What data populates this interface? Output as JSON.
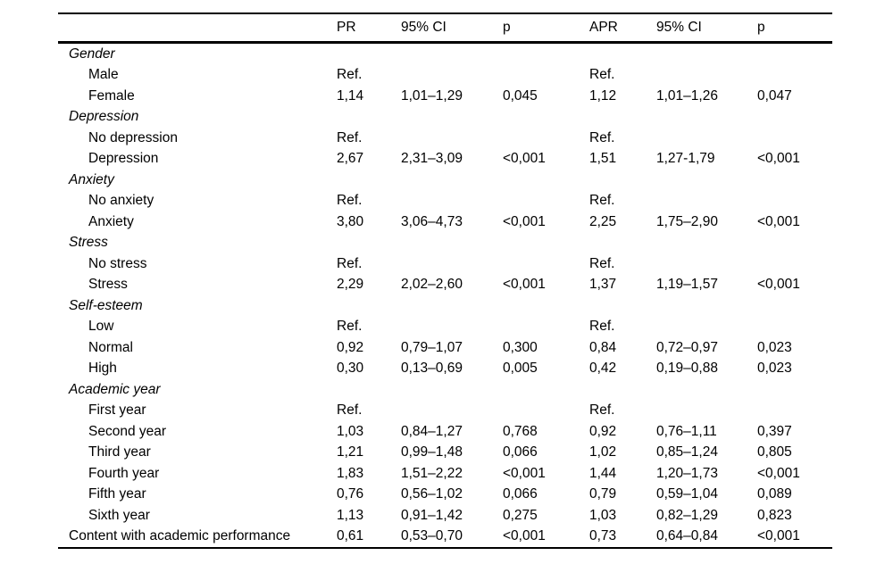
{
  "page": {
    "background_color": "#ffffff",
    "text_color": "#000000",
    "rule_color": "#000000"
  },
  "table": {
    "columns": [
      "",
      "PR",
      "95% CI",
      "p",
      "APR",
      "95% CI",
      "p"
    ],
    "rows": [
      {
        "type": "category",
        "label": "Gender",
        "pr": "",
        "ci1": "",
        "p1": "",
        "apr": "",
        "ci2": "",
        "p2": ""
      },
      {
        "type": "item",
        "label": "Male",
        "pr": "Ref.",
        "ci1": "",
        "p1": "",
        "apr": "Ref.",
        "ci2": "",
        "p2": ""
      },
      {
        "type": "item",
        "label": "Female",
        "pr": "1,14",
        "ci1": "1,01–1,29",
        "p1": "0,045",
        "apr": "1,12",
        "ci2": "1,01–1,26",
        "p2": "0,047"
      },
      {
        "type": "category",
        "label": "Depression",
        "pr": "",
        "ci1": "",
        "p1": "",
        "apr": "",
        "ci2": "",
        "p2": ""
      },
      {
        "type": "item",
        "label": "No depression",
        "pr": "Ref.",
        "ci1": "",
        "p1": "",
        "apr": "Ref.",
        "ci2": "",
        "p2": ""
      },
      {
        "type": "item",
        "label": "Depression",
        "pr": "2,67",
        "ci1": "2,31–3,09",
        "p1": "<0,001",
        "apr": "1,51",
        "ci2": "1,27-1,79",
        "p2": "<0,001"
      },
      {
        "type": "category",
        "label": "Anxiety",
        "pr": "",
        "ci1": "",
        "p1": "",
        "apr": "",
        "ci2": "",
        "p2": ""
      },
      {
        "type": "item",
        "label": "No anxiety",
        "pr": "Ref.",
        "ci1": "",
        "p1": "",
        "apr": "Ref.",
        "ci2": "",
        "p2": ""
      },
      {
        "type": "item",
        "label": "Anxiety",
        "pr": "3,80",
        "ci1": "3,06–4,73",
        "p1": "<0,001",
        "apr": "2,25",
        "ci2": "1,75–2,90",
        "p2": "<0,001"
      },
      {
        "type": "category",
        "label": "Stress",
        "pr": "",
        "ci1": "",
        "p1": "",
        "apr": "",
        "ci2": "",
        "p2": ""
      },
      {
        "type": "item",
        "label": "No stress",
        "pr": "Ref.",
        "ci1": "",
        "p1": "",
        "apr": "Ref.",
        "ci2": "",
        "p2": ""
      },
      {
        "type": "item",
        "label": "Stress",
        "pr": "2,29",
        "ci1": "2,02–2,60",
        "p1": "<0,001",
        "apr": "1,37",
        "ci2": "1,19–1,57",
        "p2": "<0,001"
      },
      {
        "type": "category",
        "label": "Self-esteem",
        "pr": "",
        "ci1": "",
        "p1": "",
        "apr": "",
        "ci2": "",
        "p2": ""
      },
      {
        "type": "item",
        "label": "Low",
        "pr": "Ref.",
        "ci1": "",
        "p1": "",
        "apr": "Ref.",
        "ci2": "",
        "p2": ""
      },
      {
        "type": "item",
        "label": "Normal",
        "pr": "0,92",
        "ci1": "0,79–1,07",
        "p1": "0,300",
        "apr": "0,84",
        "ci2": "0,72–0,97",
        "p2": "0,023"
      },
      {
        "type": "item",
        "label": "High",
        "pr": "0,30",
        "ci1": "0,13–0,69",
        "p1": "0,005",
        "apr": "0,42",
        "ci2": "0,19–0,88",
        "p2": "0,023"
      },
      {
        "type": "category",
        "label": "Academic year",
        "pr": "",
        "ci1": "",
        "p1": "",
        "apr": "",
        "ci2": "",
        "p2": ""
      },
      {
        "type": "item",
        "label": "First year",
        "pr": "Ref.",
        "ci1": "",
        "p1": "",
        "apr": "Ref.",
        "ci2": "",
        "p2": ""
      },
      {
        "type": "item",
        "label": "Second year",
        "pr": "1,03",
        "ci1": "0,84–1,27",
        "p1": "0,768",
        "apr": "0,92",
        "ci2": "0,76–1,11",
        "p2": "0,397"
      },
      {
        "type": "item",
        "label": "Third year",
        "pr": "1,21",
        "ci1": "0,99–1,48",
        "p1": "0,066",
        "apr": "1,02",
        "ci2": "0,85–1,24",
        "p2": "0,805"
      },
      {
        "type": "item",
        "label": "Fourth year",
        "pr": "1,83",
        "ci1": "1,51–2,22",
        "p1": "<0,001",
        "apr": "1,44",
        "ci2": "1,20–1,73",
        "p2": "<0,001"
      },
      {
        "type": "item",
        "label": "Fifth year",
        "pr": "0,76",
        "ci1": "0,56–1,02",
        "p1": "0,066",
        "apr": "0,79",
        "ci2": "0,59–1,04",
        "p2": "0,089"
      },
      {
        "type": "item",
        "label": "Sixth year",
        "pr": "1,13",
        "ci1": "0,91–1,42",
        "p1": "0,275",
        "apr": "1,03",
        "ci2": "0,82–1,29",
        "p2": "0,823"
      },
      {
        "type": "plain",
        "label": "Content with academic performance",
        "pr": "0,61",
        "ci1": "0,53–0,70",
        "p1": "<0,001",
        "apr": "0,73",
        "ci2": "0,64–0,84",
        "p2": "<0,001"
      }
    ]
  }
}
